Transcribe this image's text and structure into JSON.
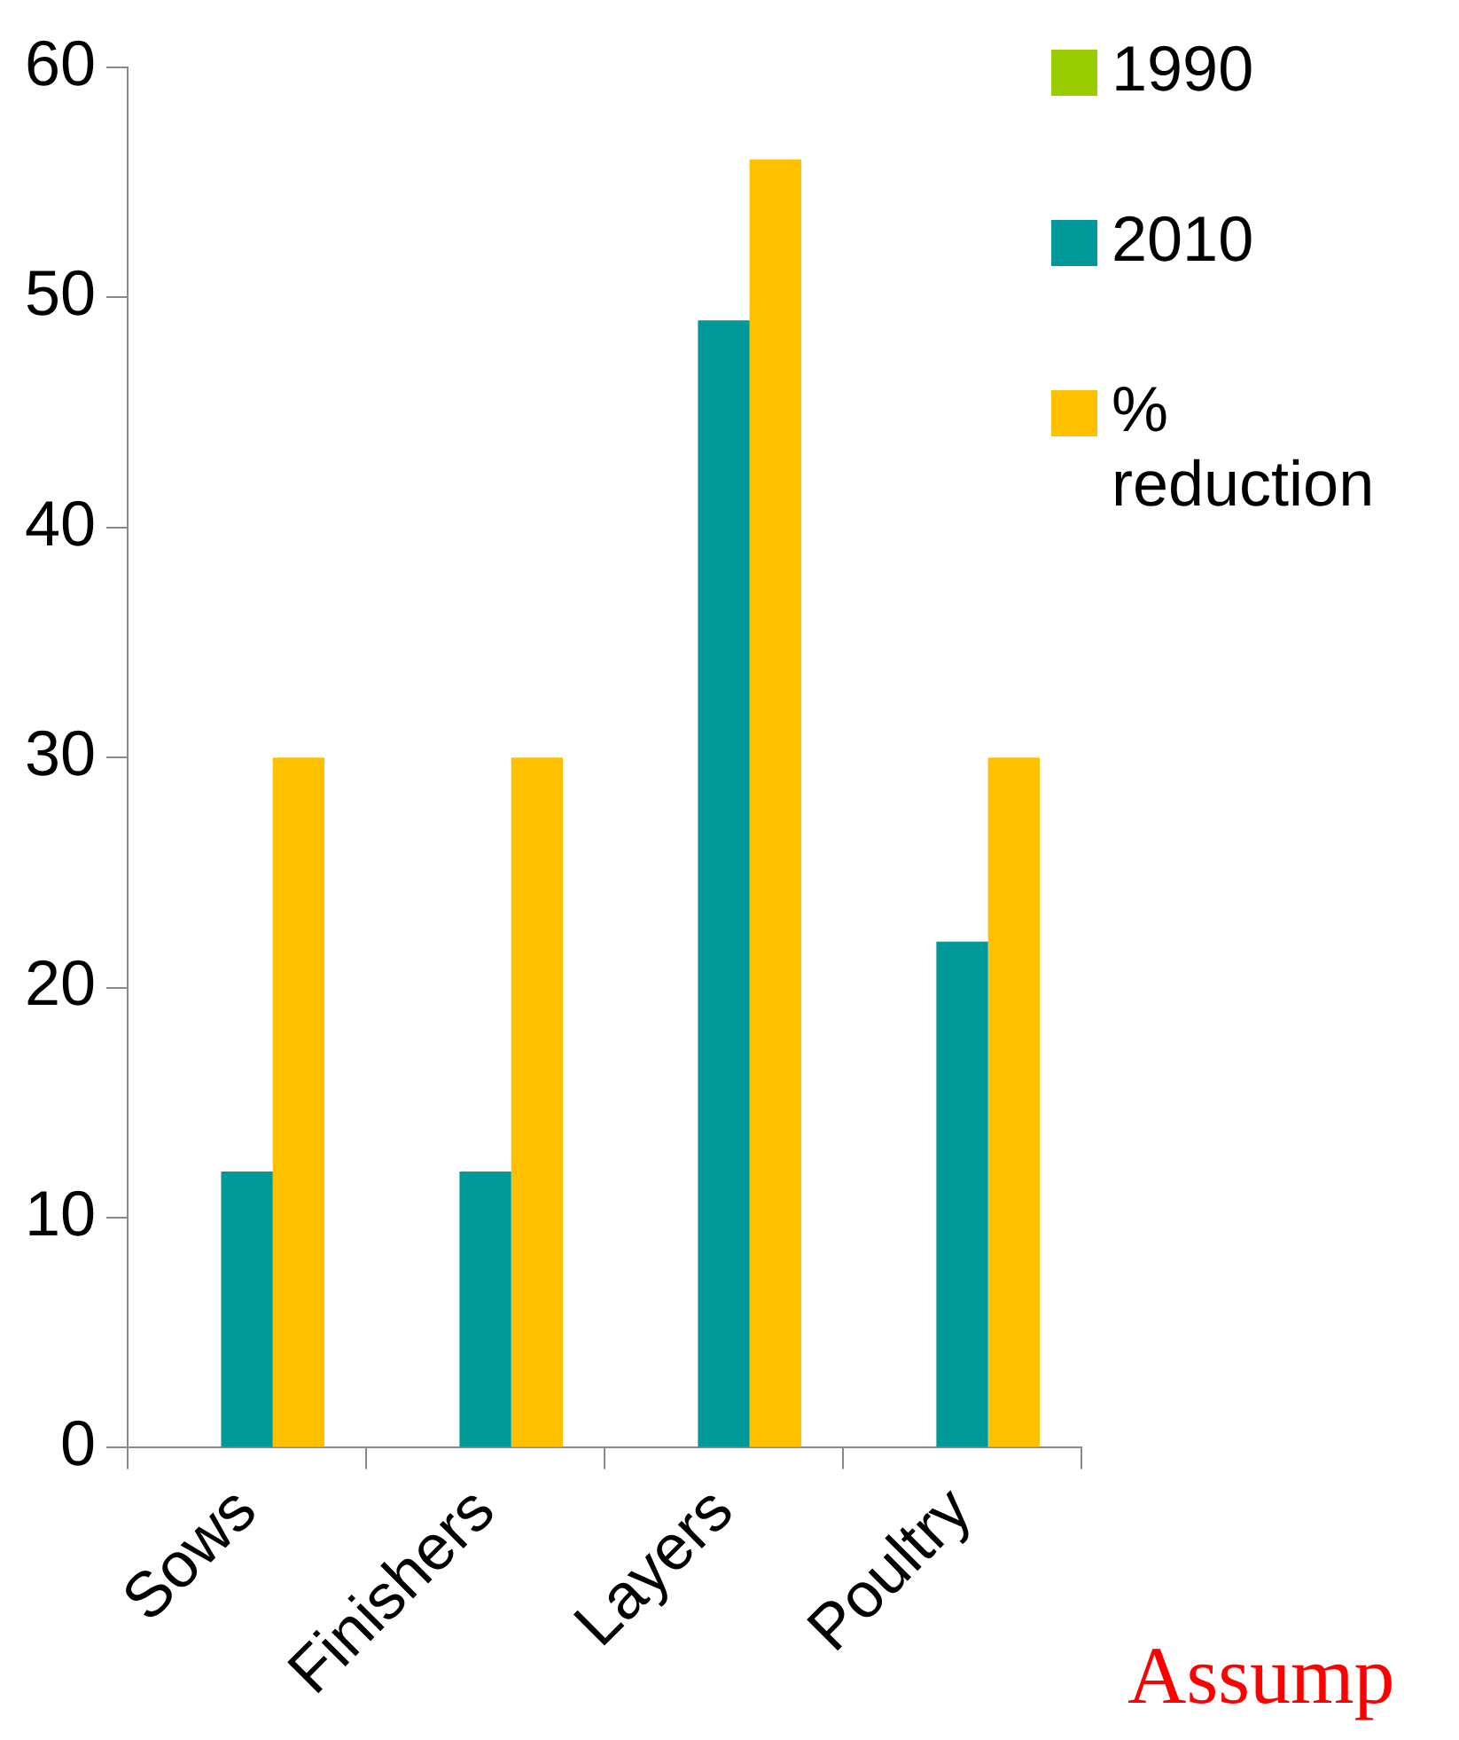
{
  "chart_data": {
    "type": "bar",
    "categories": [
      "Sows",
      "Finishers",
      "Layers",
      "Poultry"
    ],
    "series": [
      {
        "name": "1990",
        "color": "#99cc00",
        "values": [
          null,
          null,
          null,
          null
        ]
      },
      {
        "name": "2010",
        "color": "#009999",
        "values": [
          12,
          12,
          49,
          22
        ]
      },
      {
        "name": "% reduction",
        "color": "#ffc000",
        "values": [
          30,
          30,
          56,
          30
        ]
      }
    ],
    "ylim": [
      0,
      60
    ],
    "yticks": [
      0,
      10,
      20,
      30,
      40,
      50,
      60
    ],
    "grid": false,
    "legend": "right",
    "annotations": [
      "Assump"
    ]
  }
}
